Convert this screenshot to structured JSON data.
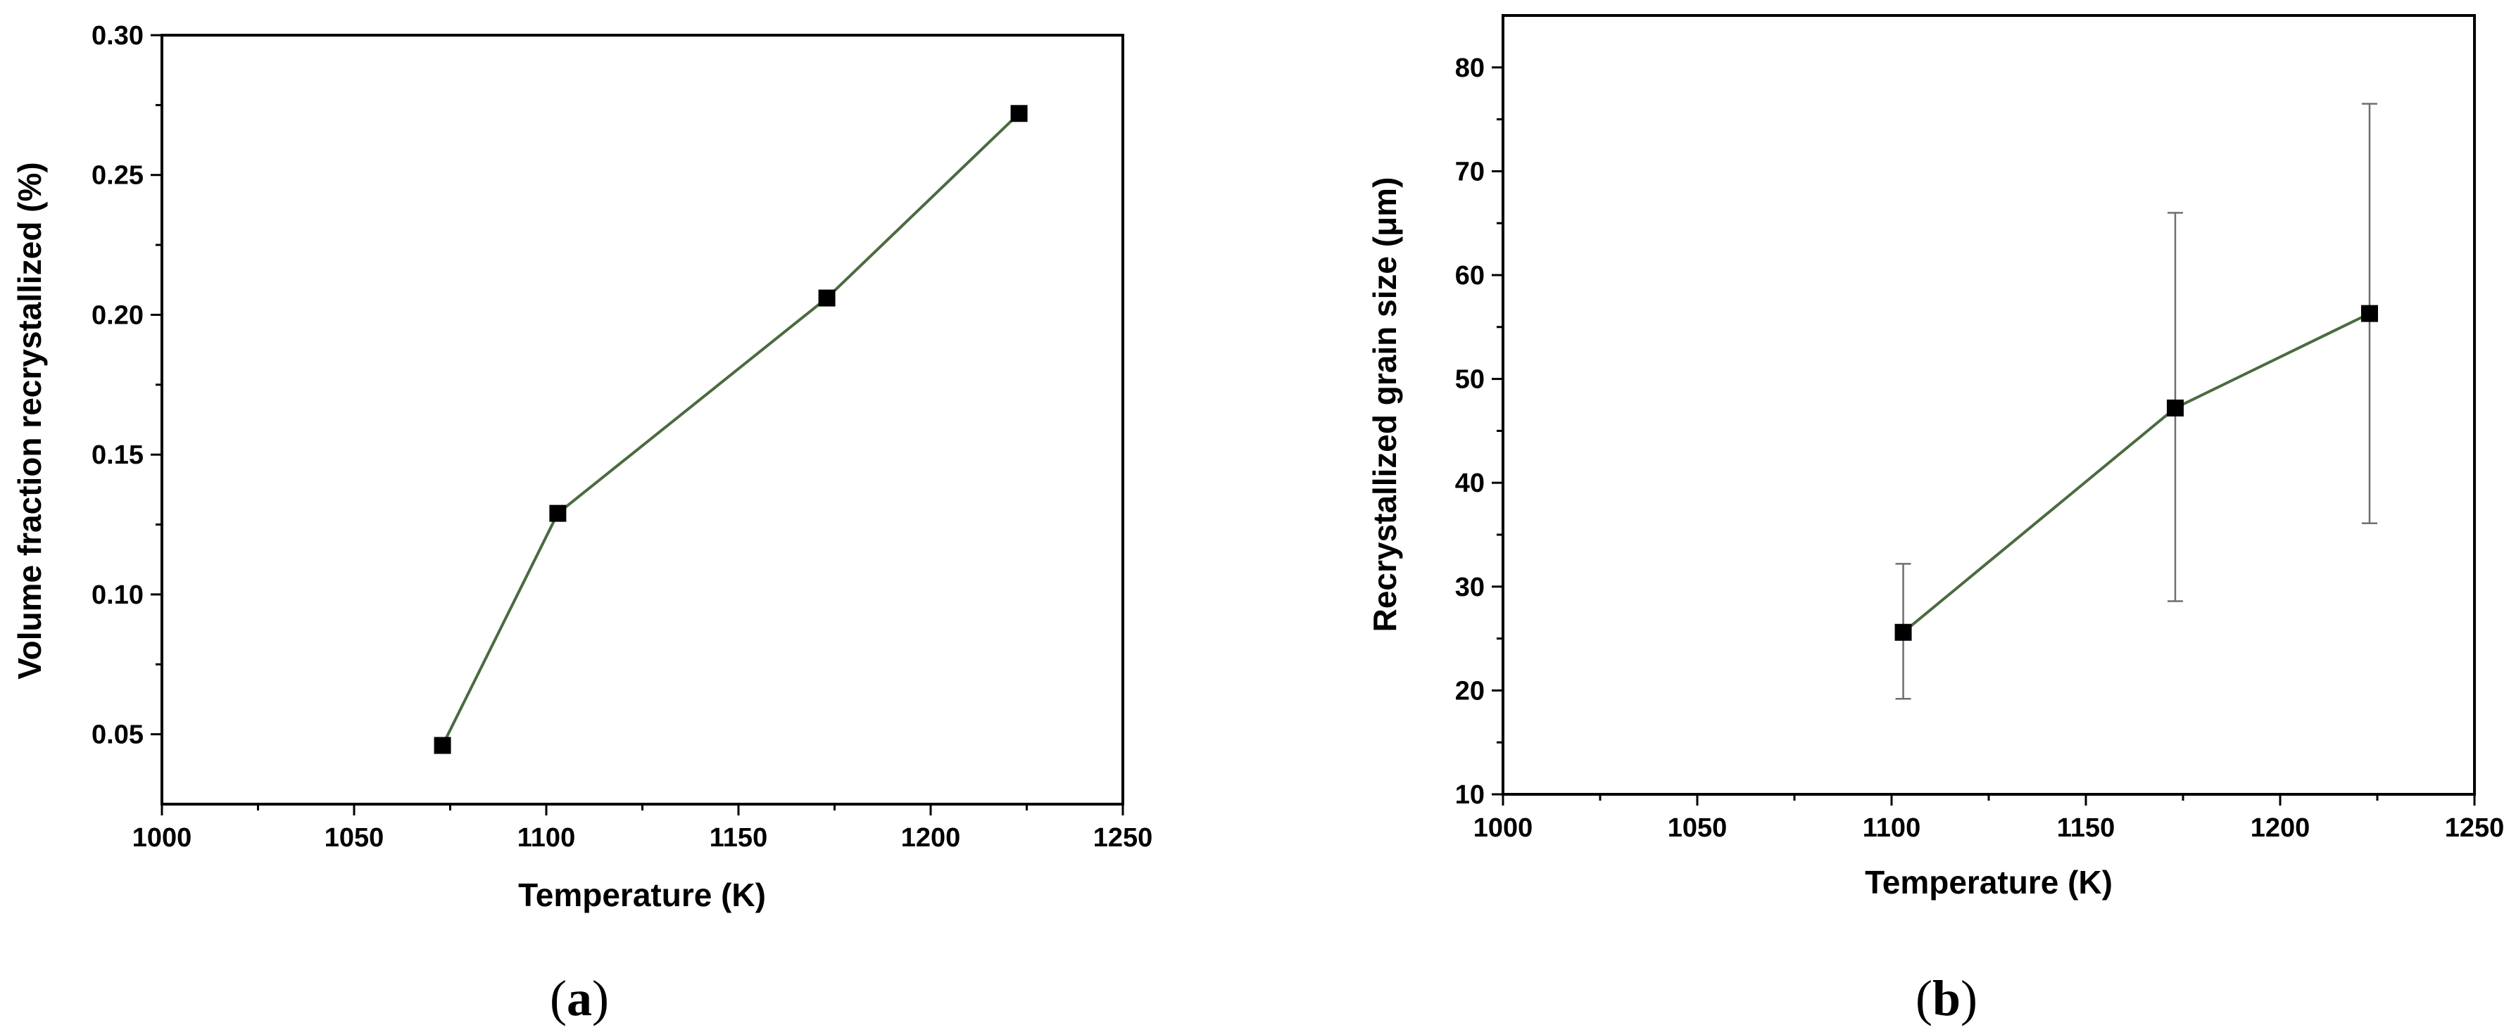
{
  "chart_data": [
    {
      "type": "line",
      "panel_label": "a",
      "xlabel": "Temperature (K)",
      "ylabel": "Volume fraction recrystallized (%)",
      "xlim": [
        1000,
        1250
      ],
      "ylim": [
        0.025,
        0.3
      ],
      "xticks": [
        "1000",
        "1050",
        "1100",
        "1150",
        "1200",
        "1250"
      ],
      "yticks": [
        "0.05",
        "0.10",
        "0.15",
        "0.20",
        "0.25",
        "0.30"
      ],
      "grid": false,
      "series": [
        {
          "x": [
            1073,
            1103,
            1173,
            1223
          ],
          "y": [
            0.046,
            0.129,
            0.206,
            0.272
          ],
          "color": "#4a6b3f",
          "marker": "square"
        }
      ]
    },
    {
      "type": "line",
      "panel_label": "b",
      "xlabel": "Temperature (K)",
      "ylabel": "Recrystallized grain size (μm)",
      "xlim": [
        1000,
        1250
      ],
      "ylim": [
        10,
        85
      ],
      "xticks": [
        "1000",
        "1050",
        "1100",
        "1150",
        "1200",
        "1250"
      ],
      "yticks": [
        "10",
        "20",
        "30",
        "40",
        "50",
        "60",
        "70",
        "80"
      ],
      "grid": false,
      "series": [
        {
          "x": [
            1103,
            1173,
            1223
          ],
          "y": [
            25.6,
            47.2,
            56.3
          ],
          "error_low": [
            19.2,
            28.6,
            36.1
          ],
          "error_high": [
            32.2,
            66.0,
            76.5
          ],
          "color": "#4a6b3f",
          "marker": "square"
        }
      ]
    }
  ]
}
